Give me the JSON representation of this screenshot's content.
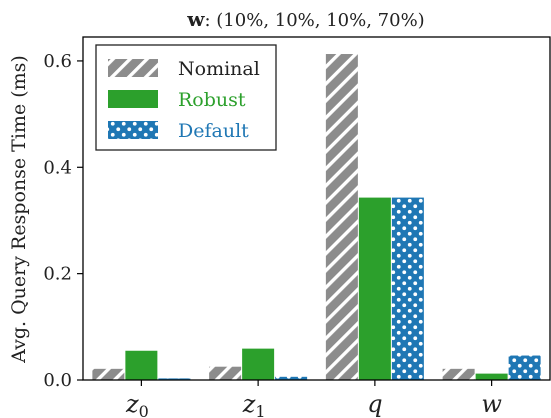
{
  "chart_data": {
    "type": "bar",
    "title_bold": "w",
    "title_rest": ": (10%, 10%, 10%, 70%)",
    "xlabel": "",
    "ylabel": "Avg. Query Response Time (ms)",
    "ylim": [
      0,
      0.645
    ],
    "yticks": [
      "0.0",
      "0.2",
      "0.4",
      "0.6"
    ],
    "ytick_values": [
      0.0,
      0.2,
      0.4,
      0.6
    ],
    "categories": [
      {
        "base": "z",
        "sub": "0"
      },
      {
        "base": "z",
        "sub": "1"
      },
      {
        "base": "q",
        "sub": ""
      },
      {
        "base": "w",
        "sub": ""
      }
    ],
    "series": [
      {
        "name": "Nominal",
        "color": "#8c8c8c",
        "pattern": "hatch",
        "values": [
          0.021,
          0.025,
          0.613,
          0.021
        ]
      },
      {
        "name": "Robust",
        "color": "#2ca02c",
        "pattern": "solid",
        "values": [
          0.055,
          0.059,
          0.343,
          0.012
        ]
      },
      {
        "name": "Default",
        "color": "#1f77b4",
        "pattern": "dots",
        "values": [
          0.003,
          0.006,
          0.343,
          0.046
        ]
      }
    ],
    "legend_position": "top-left",
    "grid": false
  }
}
